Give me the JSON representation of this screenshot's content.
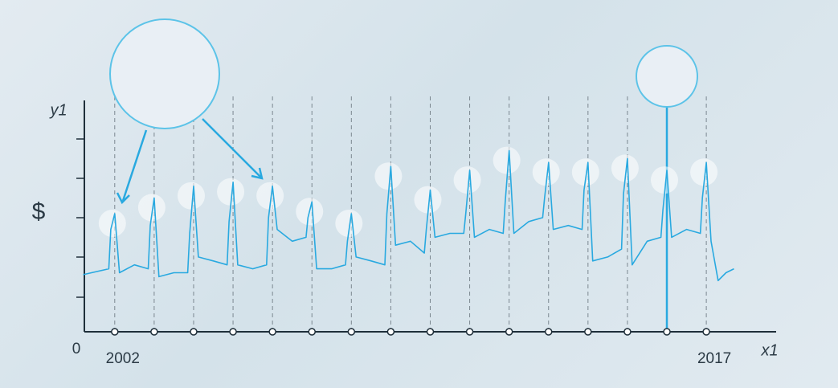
{
  "chart_data": {
    "type": "line",
    "y_label": "y1",
    "x_label": "x1",
    "unit_label": "$",
    "color": "#29a9e0",
    "xlim": [
      2001.23,
      2018.75
    ],
    "xticks": [
      2002,
      2017
    ],
    "ylim": [
      0,
      6
    ],
    "yticks": [
      0
    ],
    "x": [
      2001.2,
      2001.85,
      2001.9,
      2002,
      2002.12,
      2002.5,
      2002.85,
      2002.9,
      2003,
      2003.12,
      2003.5,
      2003.85,
      2003.9,
      2004,
      2004.12,
      2004.5,
      2004.85,
      2004.9,
      2005,
      2005.12,
      2005.5,
      2005.85,
      2005.9,
      2006,
      2006.12,
      2006.5,
      2006.85,
      2006.9,
      2007,
      2007.12,
      2007.5,
      2007.85,
      2007.9,
      2008,
      2008.12,
      2008.5,
      2008.85,
      2008.9,
      2009,
      2009.12,
      2009.5,
      2009.85,
      2009.9,
      2010,
      2010.12,
      2010.5,
      2010.85,
      2010.9,
      2011,
      2011.12,
      2011.5,
      2011.85,
      2011.9,
      2012,
      2012.12,
      2012.5,
      2012.85,
      2012.9,
      2013,
      2013.12,
      2013.5,
      2013.85,
      2013.9,
      2014,
      2014.12,
      2014.5,
      2014.85,
      2014.9,
      2015,
      2015.12,
      2015.5,
      2015.85,
      2015.9,
      2016,
      2016.12,
      2016.5,
      2016.85,
      2016.9,
      2017,
      2017.12,
      2017.3,
      2017.5,
      2017.7
    ],
    "values": [
      1.45,
      1.6,
      2.6,
      3.0,
      1.5,
      1.7,
      1.6,
      2.7,
      3.4,
      1.4,
      1.5,
      1.5,
      2.5,
      3.7,
      1.9,
      1.8,
      1.7,
      2.8,
      3.8,
      1.7,
      1.6,
      1.7,
      2.9,
      3.7,
      2.6,
      2.3,
      2.4,
      2.9,
      3.3,
      1.6,
      1.6,
      1.7,
      2.3,
      3.0,
      1.9,
      1.8,
      1.7,
      3.0,
      4.2,
      2.2,
      2.3,
      2.0,
      2.6,
      3.6,
      2.4,
      2.5,
      2.5,
      3.0,
      4.1,
      2.4,
      2.6,
      2.5,
      3.3,
      4.6,
      2.5,
      2.8,
      2.9,
      3.4,
      4.3,
      2.6,
      2.7,
      2.6,
      3.6,
      4.3,
      1.8,
      1.9,
      2.1,
      3.5,
      4.4,
      1.7,
      2.3,
      2.4,
      3.1,
      4.1,
      2.4,
      2.6,
      2.5,
      3.4,
      4.3,
      2.3,
      1.3,
      1.5,
      1.6
    ],
    "highlight_x": 2016
  }
}
